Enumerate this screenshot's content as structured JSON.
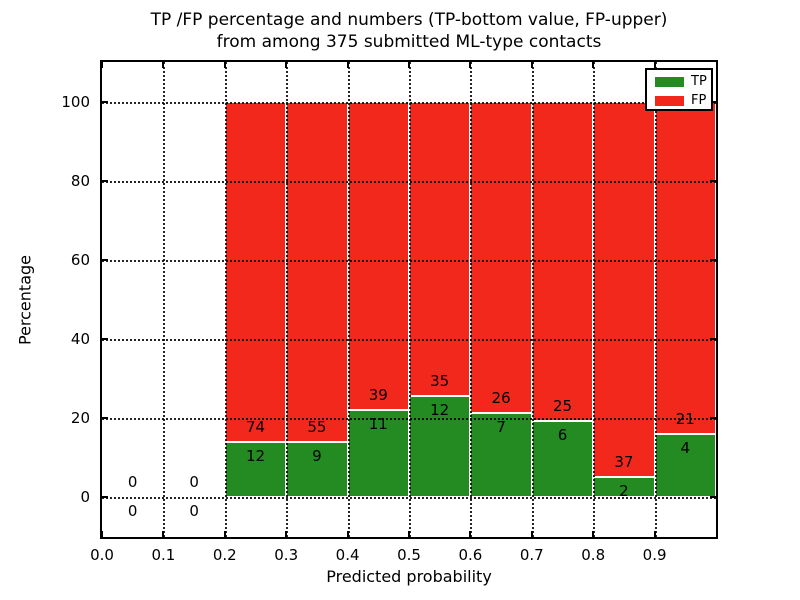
{
  "title": {
    "line1": "TP /FP percentage and numbers (TP-bottom value, FP-upper)",
    "line2": "from among 375 submitted ML-type contacts"
  },
  "x_axis": {
    "label": "Predicted probability",
    "ticks": [
      {
        "value": 0.0,
        "label": "0.0"
      },
      {
        "value": 0.1,
        "label": "0.1"
      },
      {
        "value": 0.2,
        "label": "0.2"
      },
      {
        "value": 0.3,
        "label": "0.3"
      },
      {
        "value": 0.4,
        "label": "0.4"
      },
      {
        "value": 0.5,
        "label": "0.5"
      },
      {
        "value": 0.6,
        "label": "0.6"
      },
      {
        "value": 0.7,
        "label": "0.7"
      },
      {
        "value": 0.8,
        "label": "0.8"
      },
      {
        "value": 0.9,
        "label": "0.9"
      }
    ]
  },
  "y_axis": {
    "label": "Percentage",
    "ticks": [
      {
        "value": 0,
        "label": "0"
      },
      {
        "value": 20,
        "label": "20"
      },
      {
        "value": 40,
        "label": "40"
      },
      {
        "value": 60,
        "label": "60"
      },
      {
        "value": 80,
        "label": "80"
      },
      {
        "value": 100,
        "label": "100"
      }
    ]
  },
  "legend": {
    "items": [
      {
        "label": "TP",
        "color": "#238b21"
      },
      {
        "label": "FP",
        "color": "#f3281c"
      }
    ]
  },
  "colors": {
    "tp": "#238b21",
    "fp": "#f3281c",
    "grid": "#000000",
    "background": "#ffffff"
  },
  "chart_data": {
    "type": "bar",
    "stacked": true,
    "title": "TP /FP percentage and numbers (TP-bottom value, FP-upper) from among 375 submitted ML-type contacts",
    "xlabel": "Predicted probability",
    "ylabel": "Percentage",
    "xlim": [
      0.0,
      1.0
    ],
    "ylim": [
      -10,
      110
    ],
    "grid": true,
    "legend_position": "upper right",
    "total_contacts": 375,
    "series_names": [
      "TP",
      "FP"
    ],
    "bins": [
      {
        "x0": 0.0,
        "x1": 0.1,
        "tp_count": 0,
        "fp_count": 0,
        "tp_pct": null,
        "fp_pct": null
      },
      {
        "x0": 0.1,
        "x1": 0.2,
        "tp_count": 0,
        "fp_count": 0,
        "tp_pct": null,
        "fp_pct": null
      },
      {
        "x0": 0.2,
        "x1": 0.3,
        "tp_count": 12,
        "fp_count": 74,
        "tp_pct": 13.95,
        "fp_pct": 86.05
      },
      {
        "x0": 0.3,
        "x1": 0.4,
        "tp_count": 9,
        "fp_count": 55,
        "tp_pct": 14.06,
        "fp_pct": 85.94
      },
      {
        "x0": 0.4,
        "x1": 0.5,
        "tp_count": 11,
        "fp_count": 39,
        "tp_pct": 22.0,
        "fp_pct": 78.0
      },
      {
        "x0": 0.5,
        "x1": 0.6,
        "tp_count": 12,
        "fp_count": 35,
        "tp_pct": 25.53,
        "fp_pct": 74.47
      },
      {
        "x0": 0.6,
        "x1": 0.7,
        "tp_count": 7,
        "fp_count": 26,
        "tp_pct": 21.21,
        "fp_pct": 78.79
      },
      {
        "x0": 0.7,
        "x1": 0.8,
        "tp_count": 6,
        "fp_count": 25,
        "tp_pct": 19.35,
        "fp_pct": 80.65
      },
      {
        "x0": 0.8,
        "x1": 0.9,
        "tp_count": 2,
        "fp_count": 37,
        "tp_pct": 5.13,
        "fp_pct": 94.87
      },
      {
        "x0": 0.9,
        "x1": 1.0,
        "tp_count": 4,
        "fp_count": 21,
        "tp_pct": 16.0,
        "fp_pct": 84.0
      }
    ]
  }
}
